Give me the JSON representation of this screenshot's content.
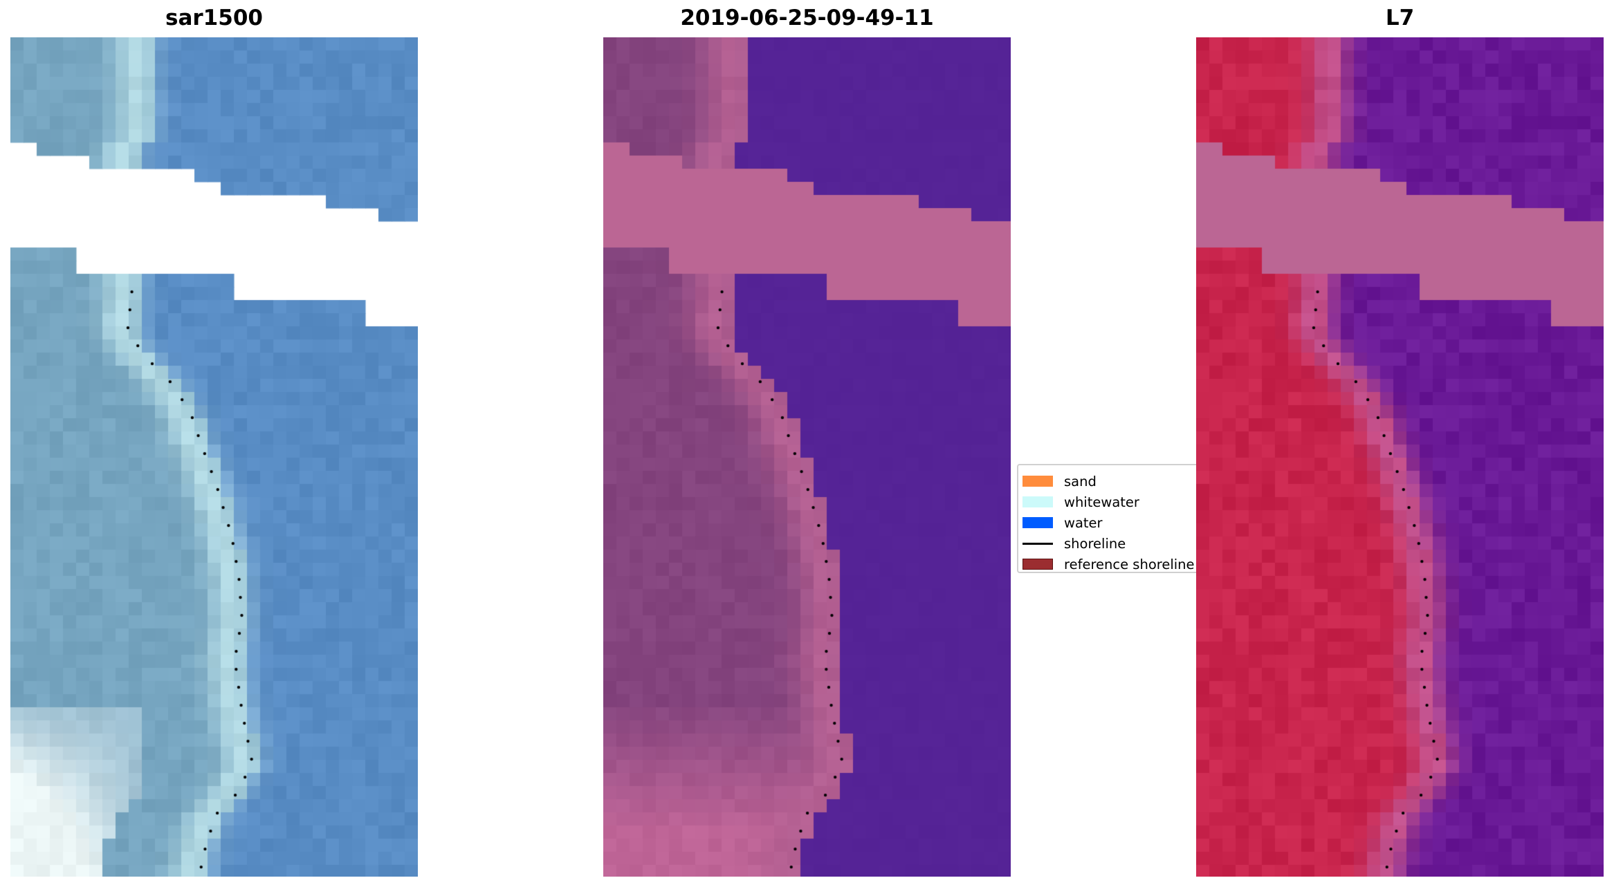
{
  "panels": [
    {
      "title": "sar1500",
      "kind": "rgb"
    },
    {
      "title": "2019-06-25-09-49-11",
      "kind": "classified"
    },
    {
      "title": "L7",
      "kind": "mndwi"
    }
  ],
  "legend": {
    "items": [
      {
        "label": "sand",
        "color": "#ff8c3c",
        "type": "patch"
      },
      {
        "label": "whitewater",
        "color": "#ccfafa",
        "type": "patch"
      },
      {
        "label": "water",
        "color": "#005cff",
        "type": "patch"
      },
      {
        "label": "shoreline",
        "color": "#000000",
        "type": "line"
      },
      {
        "label": "reference shoreline",
        "color": "#9b2d30",
        "type": "patch",
        "edge": "#5a1010"
      }
    ]
  },
  "colors": {
    "nodata_band_classified": "#bb6694",
    "shoreline_dots": "#000000"
  }
}
